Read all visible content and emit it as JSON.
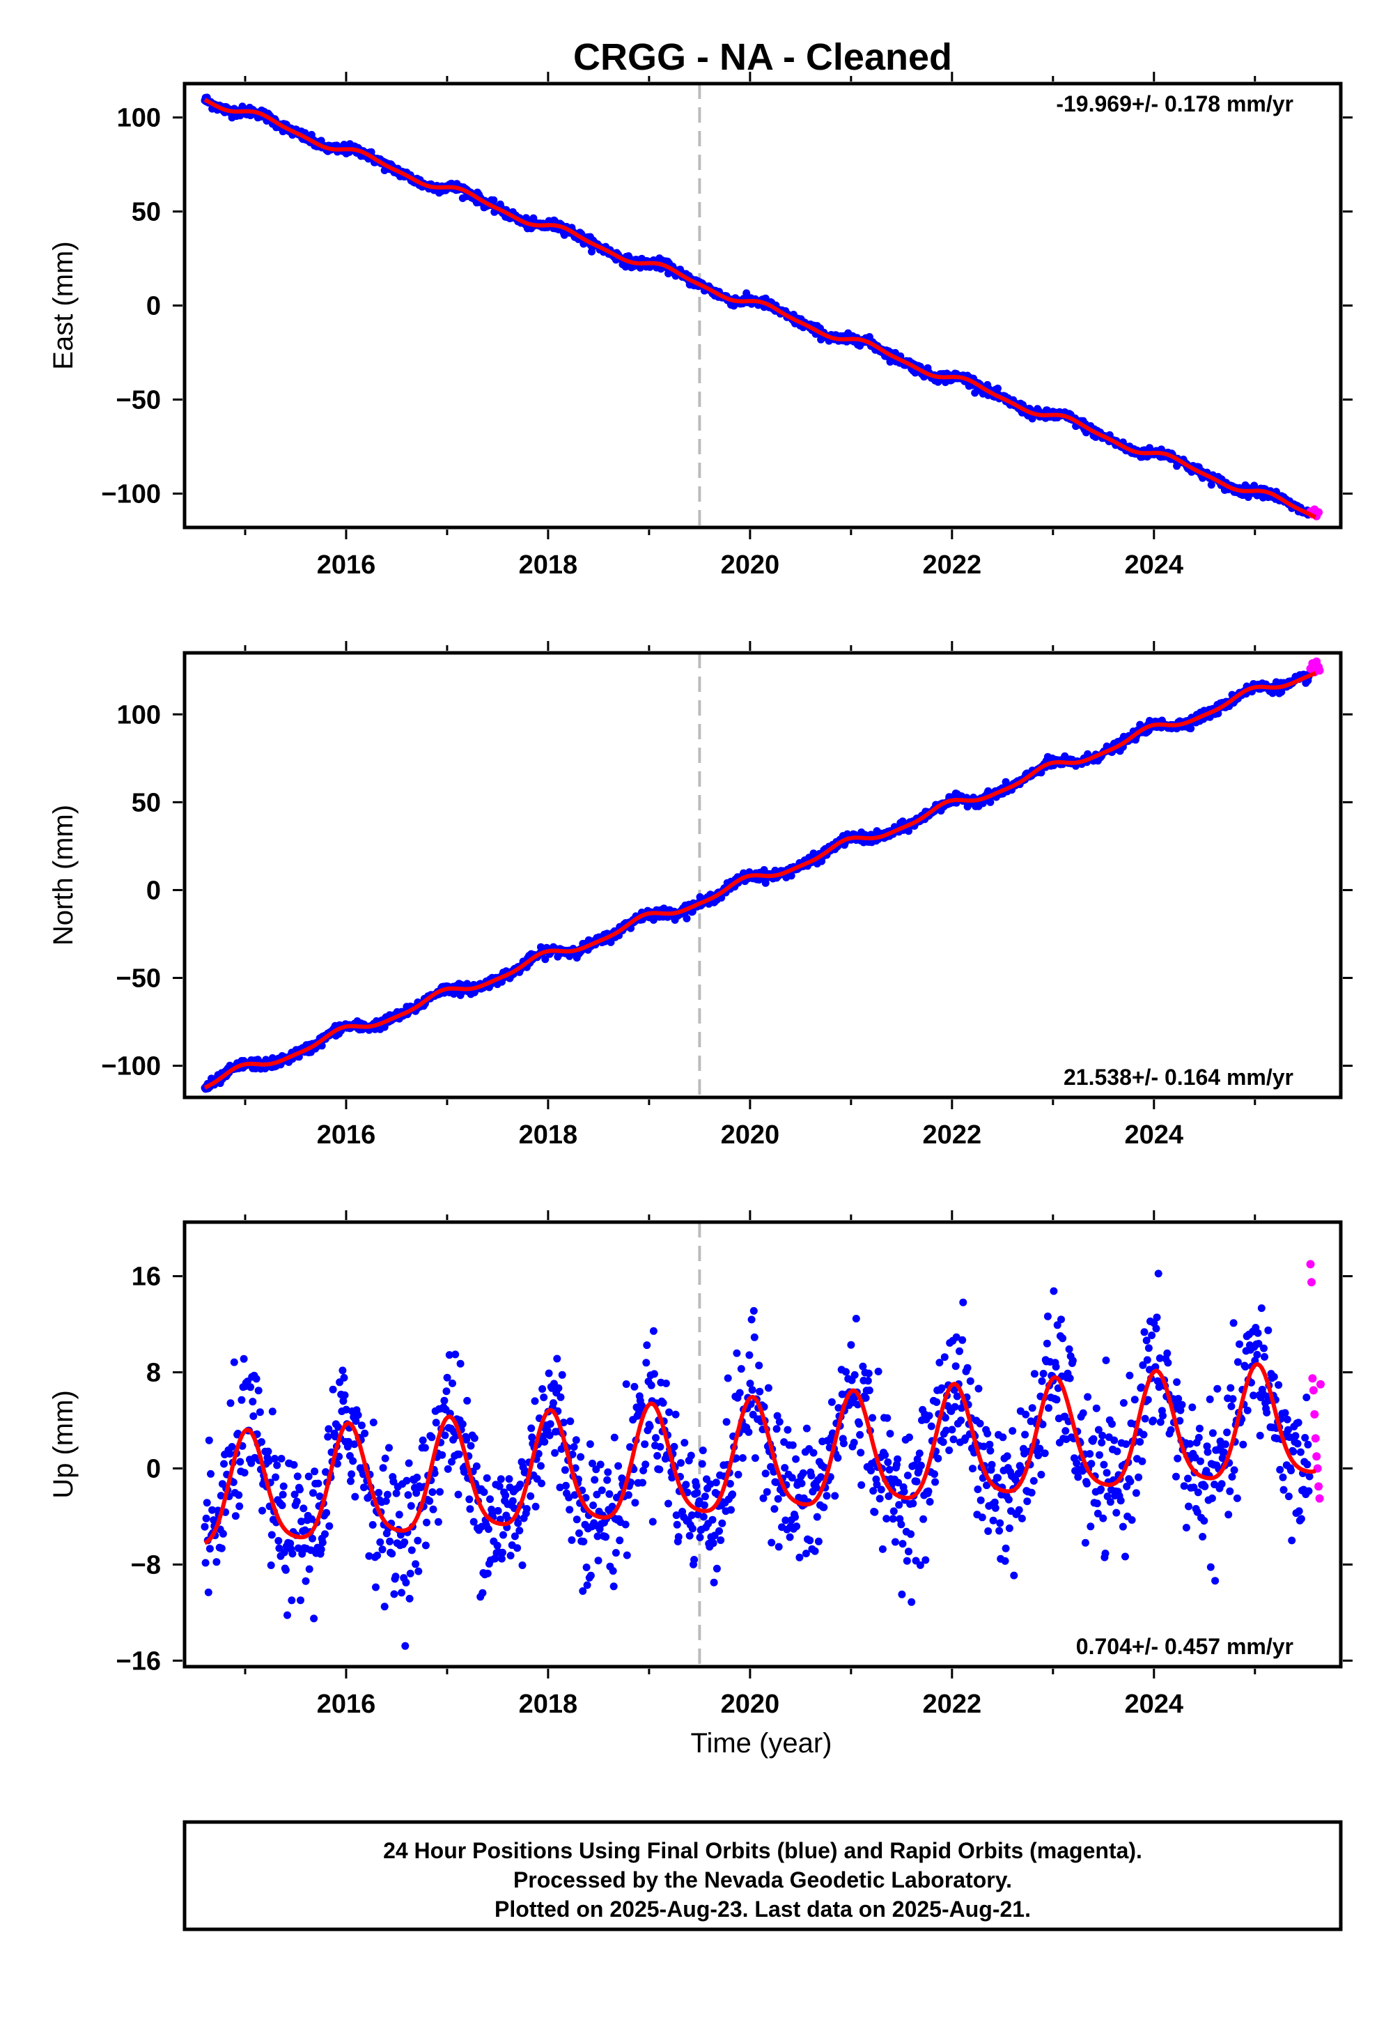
{
  "title": "CRGG  - NA - Cleaned",
  "x_axis_label": "Time (year)",
  "colors": {
    "final": "#0000ff",
    "rapid": "#ff00ff",
    "model": "#ff0000",
    "equipment_change": "#bbbbbb"
  },
  "chart_data": [
    {
      "type": "scatter",
      "ylabel": "East (mm)",
      "rate_label": "-19.969+/- 0.178 mm/yr",
      "xlim": [
        2014.4,
        2025.85
      ],
      "ylim": [
        -118,
        118
      ],
      "xticks": [
        2016,
        2018,
        2020,
        2022,
        2024
      ],
      "yticks": [
        100,
        50,
        0,
        -50,
        -100
      ],
      "ytick_labels": [
        "100",
        "50",
        "0",
        "−50",
        "−100"
      ],
      "equipment_change_x": 2019.5,
      "trend": {
        "t0": 2014.6,
        "t1": 2025.6,
        "y0": 110.5,
        "y1": -111.5
      },
      "seasonal": {
        "annual": 2.2,
        "semiannual": 0.7,
        "phase": 0.3
      },
      "noise_sd": 1.3,
      "rapid_tail": {
        "x": [
          2025.55,
          2025.57,
          2025.59,
          2025.61,
          2025.63
        ],
        "y": [
          -109.5,
          -111,
          -108.5,
          -112,
          -110
        ]
      }
    },
    {
      "type": "scatter",
      "ylabel": "North (mm)",
      "rate_label": "21.538+/- 0.164 mm/yr",
      "xlim": [
        2014.4,
        2025.85
      ],
      "ylim": [
        -118,
        135
      ],
      "xticks": [
        2016,
        2018,
        2020,
        2022,
        2024
      ],
      "yticks": [
        100,
        50,
        0,
        -50,
        -100
      ],
      "ytick_labels": [
        "100",
        "50",
        "0",
        "−50",
        "−100"
      ],
      "equipment_change_x": 2019.5,
      "trend": {
        "t0": 2014.6,
        "t1": 2025.6,
        "y0": -111,
        "y1": 125
      },
      "seasonal": {
        "annual": 2.8,
        "semiannual": 0.8,
        "phase": 2.0
      },
      "noise_sd": 1.4,
      "rapid_tail": {
        "x": [
          2025.55,
          2025.57,
          2025.59,
          2025.61,
          2025.63,
          2025.64
        ],
        "y": [
          126,
          129,
          124,
          130,
          127,
          125
        ]
      }
    },
    {
      "type": "scatter",
      "ylabel": "Up (mm)",
      "rate_label": "0.704+/- 0.457 mm/yr",
      "xlim": [
        2014.4,
        2025.85
      ],
      "ylim": [
        -16.5,
        20.5
      ],
      "xticks": [
        2016,
        2018,
        2020,
        2022,
        2024
      ],
      "yticks": [
        16,
        8,
        0,
        -8,
        -16
      ],
      "ytick_labels": [
        "16",
        "8",
        "0",
        "−8",
        "−16"
      ],
      "equipment_change_x": 2019.5,
      "trend": {
        "t0": 2014.6,
        "t1": 2025.6,
        "y0": -2.5,
        "y1": 3.5
      },
      "seasonal": {
        "annual": 4.6,
        "semiannual": 0.9,
        "phase": 1.4
      },
      "noise_sd": 2.9,
      "rapid_tail": {
        "x": [
          2025.55,
          2025.56,
          2025.57,
          2025.58,
          2025.59,
          2025.6,
          2025.61,
          2025.62,
          2025.63,
          2025.64,
          2025.65
        ],
        "y": [
          17,
          15.5,
          7.5,
          6.5,
          4.5,
          2.5,
          1,
          0,
          -1.5,
          -2.5,
          7
        ]
      }
    }
  ],
  "footer": {
    "line1": "24 Hour Positions Using Final Orbits (blue) and Rapid Orbits (magenta).",
    "line2": "Processed by the Nevada Geodetic Laboratory.",
    "line3": "Plotted on 2025-Aug-23. Last data on 2025-Aug-21."
  }
}
